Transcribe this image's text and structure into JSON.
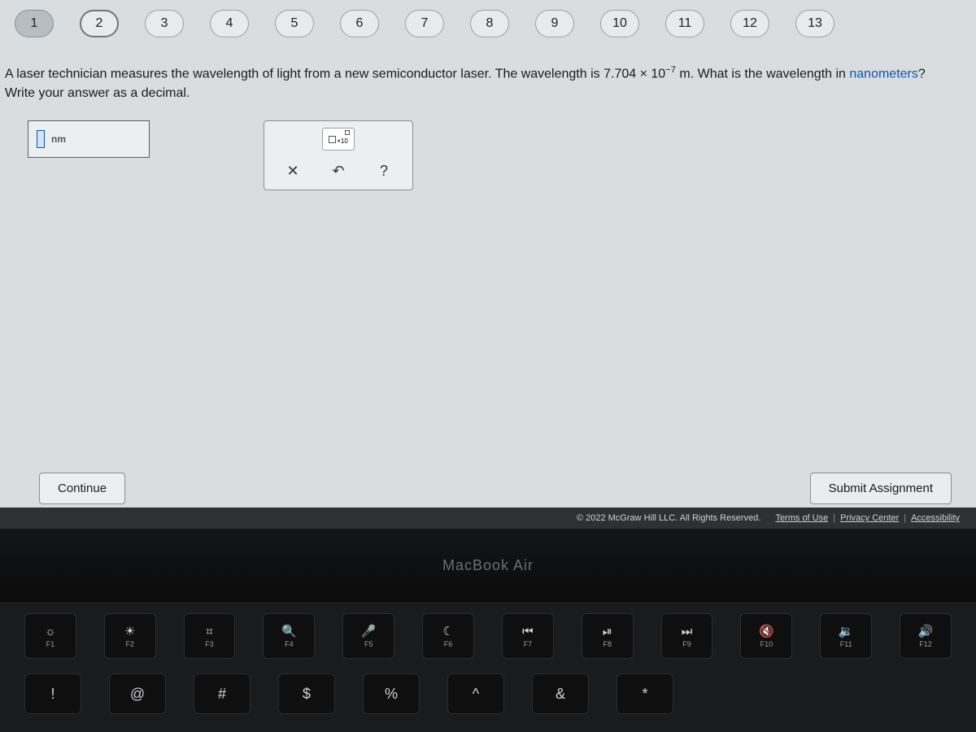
{
  "pagination": {
    "pages": [
      "1",
      "2",
      "3",
      "4",
      "5",
      "6",
      "7",
      "8",
      "9",
      "10",
      "11",
      "12",
      "13"
    ],
    "filled_index": 0,
    "current_index": 1
  },
  "question": {
    "line1_a": "A laser technician measures the wavelength of light from a new semiconductor laser. The wavelength is ",
    "value": "7.704 × 10",
    "exponent": "−7",
    "line1_b": " m. What is the wavelength in ",
    "unit_word": "nanometers",
    "q_mark": "?",
    "line2": "Write your answer as a decimal."
  },
  "answer": {
    "unit": "nm"
  },
  "toolbox": {
    "sci_label": "×10",
    "clear": "✕",
    "undo": "↶",
    "help": "?"
  },
  "buttons": {
    "continue": "Continue",
    "submit": "Submit Assignment"
  },
  "footer": {
    "copyright": "© 2022 McGraw Hill LLC. All Rights Reserved.",
    "terms": "Terms of Use",
    "privacy": "Privacy Center",
    "accessibility": "Accessibility"
  },
  "bezel": {
    "text": "MacBook Air"
  },
  "keyboard": {
    "row1": [
      {
        "icon": "☼",
        "lbl": "F1"
      },
      {
        "icon": "☀",
        "lbl": "F2"
      },
      {
        "icon": "⌗",
        "lbl": "F3"
      },
      {
        "icon": "🔍",
        "lbl": "F4"
      },
      {
        "icon": "🎤",
        "lbl": "F5"
      },
      {
        "icon": "☾",
        "lbl": "F6"
      },
      {
        "icon": "⏮",
        "lbl": "F7"
      },
      {
        "icon": "⏯",
        "lbl": "F8"
      },
      {
        "icon": "⏭",
        "lbl": "F9"
      },
      {
        "icon": "🔇",
        "lbl": "F10"
      },
      {
        "icon": "🔉",
        "lbl": "F11"
      },
      {
        "icon": "🔊",
        "lbl": "F12"
      }
    ],
    "row2": [
      "!",
      "@",
      "#",
      "$",
      "%",
      "^",
      "&",
      "*"
    ]
  }
}
